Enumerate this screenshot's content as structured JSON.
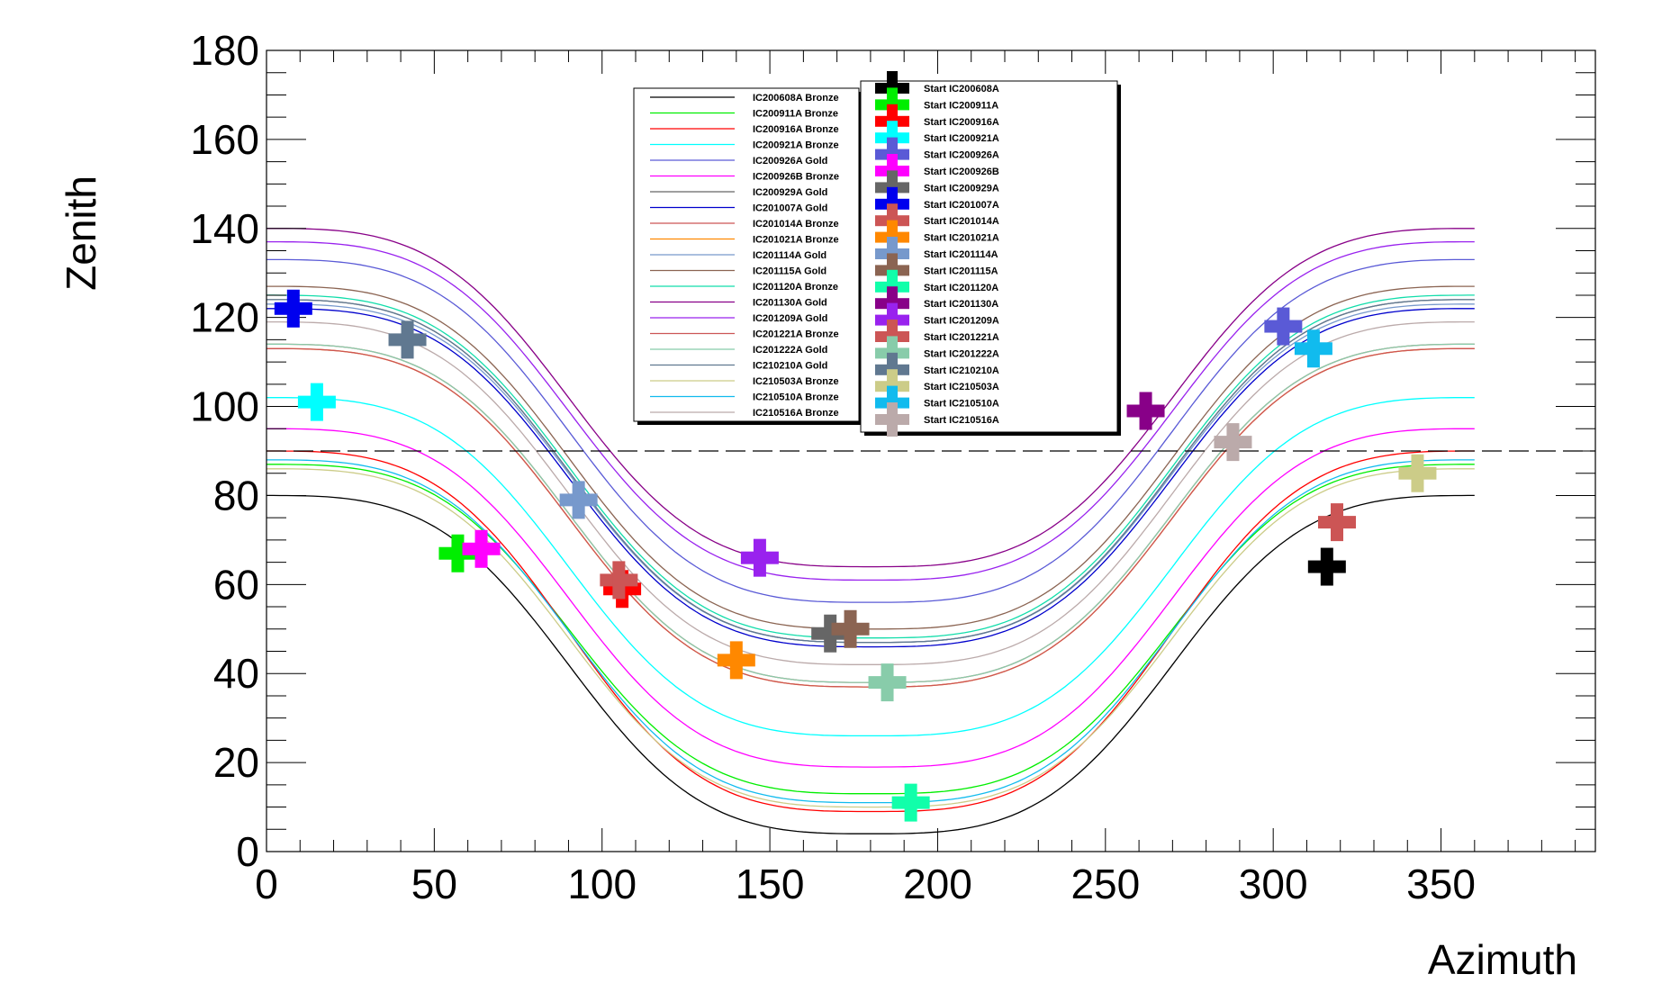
{
  "chart_data": {
    "type": "line",
    "title": "",
    "xlabel": "Azimuth",
    "ylabel": "Zenith",
    "xlim": [
      0,
      396
    ],
    "ylim": [
      0,
      180
    ],
    "xticks": [
      0,
      50,
      100,
      150,
      200,
      250,
      300,
      350
    ],
    "xtick_labels": [
      "0",
      "50",
      "100",
      "150",
      "200",
      "250",
      "300",
      "350"
    ],
    "yticks": [
      0,
      20,
      40,
      60,
      80,
      100,
      120,
      140,
      160,
      180
    ],
    "ytick_labels": [
      "0",
      "20",
      "40",
      "60",
      "80",
      "100",
      "120",
      "140",
      "160",
      "180"
    ],
    "reference_line": {
      "y": 90,
      "style": "dashed"
    },
    "curve_domain": [
      0,
      360
    ],
    "curve_note": "Each track is an S-shaped curve that is flat near azimuth 0 and 360 (value 'outer') and flat near azimuth 180 (value 'inner').",
    "series": [
      {
        "name": "IC200608A Bronze",
        "color": "#000000",
        "outer": 80,
        "inner": 4
      },
      {
        "name": "IC200911A Bronze",
        "color": "#00ee00",
        "outer": 87,
        "inner": 13
      },
      {
        "name": "IC200916A Bronze",
        "color": "#ff0000",
        "outer": 90,
        "inner": 9
      },
      {
        "name": "IC200921A Bronze",
        "color": "#00ffff",
        "outer": 102,
        "inner": 26
      },
      {
        "name": "IC200926A Gold",
        "color": "#5a5ad6",
        "outer": 133,
        "inner": 56
      },
      {
        "name": "IC200926B Bronze",
        "color": "#ff00ff",
        "outer": 95,
        "inner": 19
      },
      {
        "name": "IC200929A Gold",
        "color": "#666666",
        "outer": 124,
        "inner": 47
      },
      {
        "name": "IC201007A Gold",
        "color": "#0000cc",
        "outer": 122,
        "inner": 46
      },
      {
        "name": "IC201014A Bronze",
        "color": "#cc5555",
        "outer": 114,
        "inner": 38
      },
      {
        "name": "IC201021A Bronze",
        "color": "#ff8800",
        "outer": 113,
        "inner": 37
      },
      {
        "name": "IC201114A Gold",
        "color": "#7799cc",
        "outer": 123,
        "inner": 47
      },
      {
        "name": "IC201115A Gold",
        "color": "#8b6452",
        "outer": 127,
        "inner": 50
      },
      {
        "name": "IC201120A Bronze",
        "color": "#11ddaa",
        "outer": 125,
        "inner": 48
      },
      {
        "name": "IC201130A Gold",
        "color": "#880088",
        "outer": 140,
        "inner": 64
      },
      {
        "name": "IC201209A Gold",
        "color": "#9922ee",
        "outer": 137,
        "inner": 61
      },
      {
        "name": "IC201221A Bronze",
        "color": "#cc5555",
        "outer": 113,
        "inner": 37
      },
      {
        "name": "IC201222A Gold",
        "color": "#88ccaa",
        "outer": 114,
        "inner": 38
      },
      {
        "name": "IC210210A Gold",
        "color": "#607890",
        "outer": 124,
        "inner": 47
      },
      {
        "name": "IC210503A Bronze",
        "color": "#cccc88",
        "outer": 86,
        "inner": 10
      },
      {
        "name": "IC210510A Bronze",
        "color": "#11bbee",
        "outer": 88,
        "inner": 11
      },
      {
        "name": "IC210516A Bronze",
        "color": "#bbaaaa",
        "outer": 119,
        "inner": 42
      }
    ],
    "start_points": [
      {
        "name": "Start IC200608A",
        "color": "#000000",
        "x": 316,
        "y": 64
      },
      {
        "name": "Start IC200911A",
        "color": "#00ee00",
        "x": 57,
        "y": 67
      },
      {
        "name": "Start IC200916A",
        "color": "#ff0000",
        "x": 106,
        "y": 59
      },
      {
        "name": "Start IC200921A",
        "color": "#00ffff",
        "x": 15,
        "y": 101
      },
      {
        "name": "Start IC200926A",
        "color": "#5a5ad6",
        "x": 303,
        "y": 118
      },
      {
        "name": "Start IC200926B",
        "color": "#ff00ff",
        "x": 64,
        "y": 68
      },
      {
        "name": "Start IC200929A",
        "color": "#666666",
        "x": 168,
        "y": 49
      },
      {
        "name": "Start IC201007A",
        "color": "#0000ee",
        "x": 8,
        "y": 122
      },
      {
        "name": "Start IC201014A",
        "color": "#cc5555",
        "x": 105,
        "y": 61
      },
      {
        "name": "Start IC201021A",
        "color": "#ff8800",
        "x": 140,
        "y": 43
      },
      {
        "name": "Start IC201114A",
        "color": "#7799cc",
        "x": 93,
        "y": 79
      },
      {
        "name": "Start IC201115A",
        "color": "#8b6452",
        "x": 174,
        "y": 50
      },
      {
        "name": "Start IC201120A",
        "color": "#11ffaa",
        "x": 192,
        "y": 11
      },
      {
        "name": "Start IC201130A",
        "color": "#880088",
        "x": 262,
        "y": 99
      },
      {
        "name": "Start IC201209A",
        "color": "#9922ee",
        "x": 147,
        "y": 66
      },
      {
        "name": "Start IC201221A",
        "color": "#cc5555",
        "x": 319,
        "y": 74
      },
      {
        "name": "Start IC201222A",
        "color": "#88ccaa",
        "x": 185,
        "y": 38
      },
      {
        "name": "Start IC210210A",
        "color": "#607890",
        "x": 42,
        "y": 115
      },
      {
        "name": "Start IC210503A",
        "color": "#cccc88",
        "x": 343,
        "y": 85
      },
      {
        "name": "Start IC210510A",
        "color": "#11bbee",
        "x": 312,
        "y": 113
      },
      {
        "name": "Start IC210516A",
        "color": "#bbaaaa",
        "x": 288,
        "y": 92
      }
    ]
  }
}
